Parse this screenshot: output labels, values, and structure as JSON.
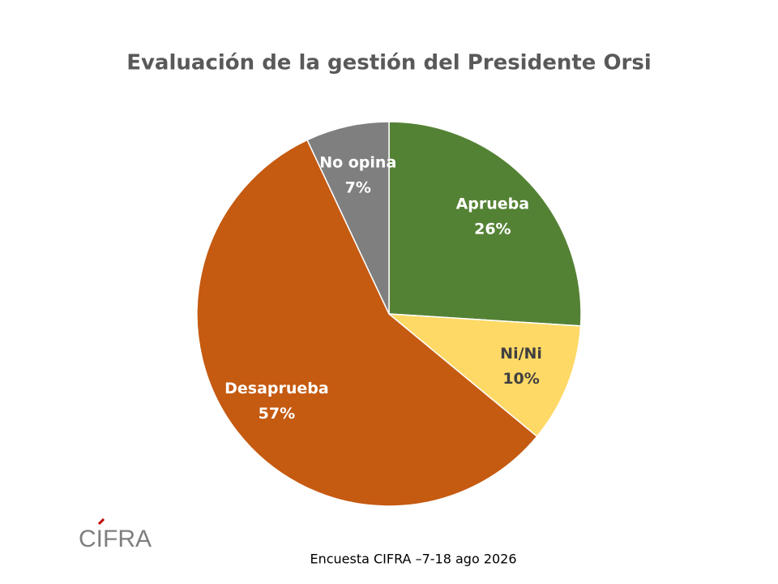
{
  "chart_data": {
    "type": "pie",
    "title": "Evaluación de la gestión del Presidente Orsi",
    "categories": [
      "Aprueba",
      "Ni/Ni",
      "Desaprueba",
      "No opina"
    ],
    "values": [
      26,
      10,
      57,
      7
    ],
    "value_labels": [
      "26%",
      "10%",
      "57%",
      "7%"
    ],
    "colors": [
      "#548235",
      "#ffd966",
      "#c55a11",
      "#7f7f7f"
    ],
    "label_colors": [
      "#ffffff",
      "#404040",
      "#ffffff",
      "#ffffff"
    ],
    "source": "Encuesta CIFRA –7-18 ago 2026",
    "logo": "CIFRA"
  }
}
